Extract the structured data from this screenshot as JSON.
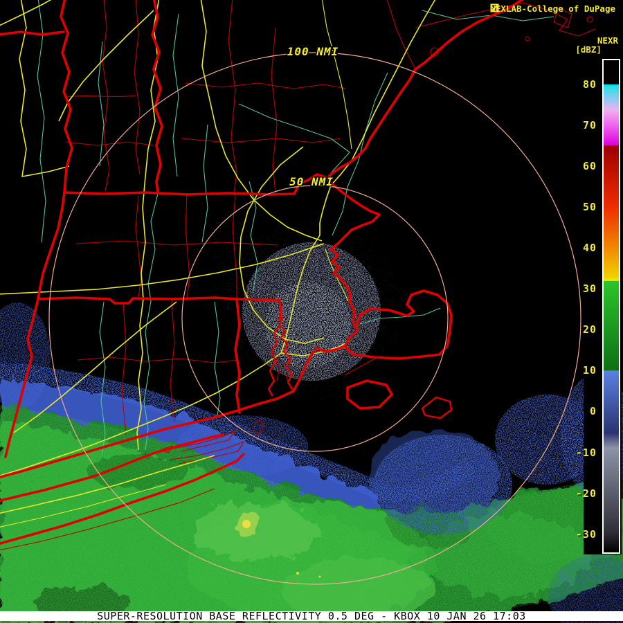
{
  "attribution": {
    "text": "NEXLAB-College of DuPage",
    "logo_icon": "cod-flag-icon"
  },
  "colorbar": {
    "product_label": "NEXR",
    "units_label": "[dBZ]",
    "ticks": [
      {
        "label": "80",
        "p": 0.049
      },
      {
        "label": "70",
        "p": 0.132
      },
      {
        "label": "60",
        "p": 0.215
      },
      {
        "label": "50",
        "p": 0.298
      },
      {
        "label": "40",
        "p": 0.381
      },
      {
        "label": "30",
        "p": 0.464
      },
      {
        "label": "20",
        "p": 0.547
      },
      {
        "label": "10",
        "p": 0.63
      },
      {
        "label": "0",
        "p": 0.713
      },
      {
        "label": "-10",
        "p": 0.797
      },
      {
        "label": "-20",
        "p": 0.88
      },
      {
        "label": "-30",
        "p": 0.963
      }
    ],
    "gradient_stops": [
      {
        "p": 0.0,
        "c": "#000000"
      },
      {
        "p": 0.049,
        "c": "#000000"
      },
      {
        "p": 0.049,
        "c": "#00e6e6"
      },
      {
        "p": 0.061,
        "c": "#49d8e8"
      },
      {
        "p": 0.085,
        "c": "#a8c4f4"
      },
      {
        "p": 0.101,
        "c": "#eeb2ee"
      },
      {
        "p": 0.13,
        "c": "#f06af0"
      },
      {
        "p": 0.173,
        "c": "#dc00dc"
      },
      {
        "p": 0.174,
        "c": "#9c0000"
      },
      {
        "p": 0.298,
        "c": "#ee2c00"
      },
      {
        "p": 0.381,
        "c": "#f08800"
      },
      {
        "p": 0.442,
        "c": "#eed400"
      },
      {
        "p": 0.448,
        "c": "#f6ee00"
      },
      {
        "p": 0.449,
        "c": "#2cc42c"
      },
      {
        "p": 0.63,
        "c": "#0e7014"
      },
      {
        "p": 0.631,
        "c": "#5a82e2"
      },
      {
        "p": 0.757,
        "c": "#2a3470"
      },
      {
        "p": 0.788,
        "c": "#8d94a8"
      },
      {
        "p": 0.96,
        "c": "#2e2e36"
      },
      {
        "p": 1.0,
        "c": "#000000"
      }
    ],
    "border_color": "#ffffff",
    "tick_color": "#f0e83c"
  },
  "range_rings": {
    "outer_label": "100 NMI",
    "inner_label": "50 NMI",
    "ring_color": "#f4ab90",
    "label_color": "#f5ee2a"
  },
  "status_bar": {
    "text": "SUPER-RESOLUTION BASE REFLECTIVITY 0.5 DEG - KBOX 10 JAN 26 17:03",
    "bg": "#ffffff",
    "fg": "#000000"
  },
  "radar": {
    "site": "KBOX",
    "product": "SUPER-RESOLUTION BASE REFLECTIVITY",
    "elevation_deg": "0.5",
    "date": "10 JAN 26",
    "time": "17:03"
  },
  "map_colors": {
    "background": "#000000",
    "state_coast_border": "#e10000",
    "county_border": "#c00000",
    "highway": "#e9e926",
    "river": "#4fc39b",
    "accent_text": "#f0e838"
  },
  "chart_data": {
    "type": "heatmap",
    "title": "NEXRAD Base Reflectivity KBOX",
    "units": "dBZ",
    "colorbar_tick_values": [
      80,
      70,
      60,
      50,
      40,
      30,
      20,
      10,
      0,
      -10,
      -20,
      -30
    ],
    "range_rings_nmi": [
      50,
      100
    ],
    "legend_position": "right"
  }
}
